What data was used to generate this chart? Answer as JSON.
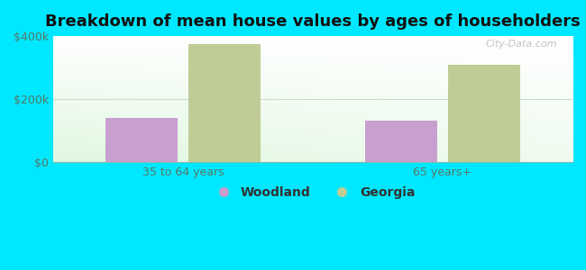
{
  "title": "Breakdown of mean house values by ages of householders",
  "categories": [
    "35 to 64 years",
    "65 years+"
  ],
  "series": {
    "Woodland": [
      140000,
      133000
    ],
    "Georgia": [
      375000,
      308000
    ]
  },
  "colors": {
    "Woodland": "#c8a0d0",
    "Georgia": "#c0cc96"
  },
  "ylim": [
    0,
    400000
  ],
  "yticks": [
    0,
    200000,
    400000
  ],
  "ytick_labels": [
    "$0",
    "$200k",
    "$400k"
  ],
  "background_color": "#00e8ff",
  "title_fontsize": 13,
  "bar_width": 0.28,
  "watermark": "City-Data.com"
}
